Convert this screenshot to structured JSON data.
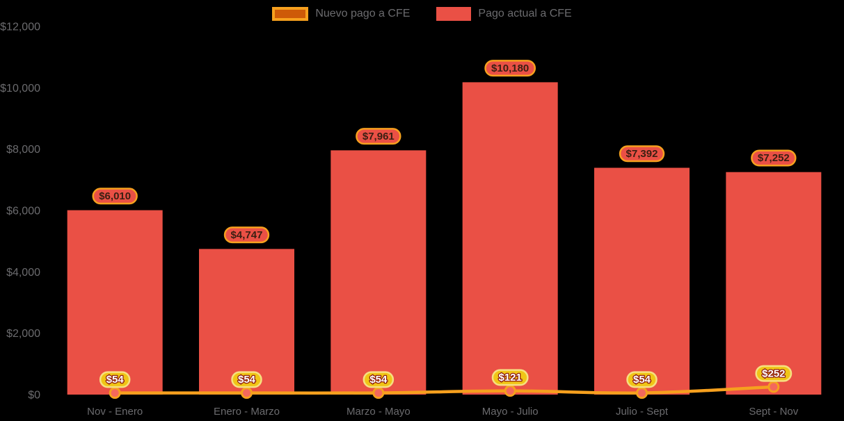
{
  "chart_data": {
    "type": "bar+line",
    "title": "",
    "background": "#000000",
    "axis_text_color": "#6b6b6e",
    "grid": false,
    "legend_position": "top",
    "categories": [
      "Nov - Enero",
      "Enero - Marzo",
      "Marzo - Mayo",
      "Mayo - Julio",
      "Julio - Sept",
      "Sept - Nov"
    ],
    "y_axis": {
      "min": 0,
      "max": 12000,
      "step": 2000,
      "tick_labels": [
        "$0",
        "$2,000",
        "$4,000",
        "$6,000",
        "$8,000",
        "$10,000",
        "$12,000"
      ]
    },
    "series": [
      {
        "name": "Nuevo pago a CFE",
        "type": "line",
        "values": [
          54,
          54,
          54,
          121,
          54,
          252
        ],
        "labels": [
          "$54",
          "$54",
          "$54",
          "$121",
          "$54",
          "$252"
        ],
        "color": "#f6a01e",
        "legend_fill": "#ce5a08",
        "point_fill": "#f4695c",
        "label_bg": "#f0c516",
        "label_border": "#f6df81",
        "label_text_color": "#ffffff",
        "label_text_stroke": "#8f1f0e"
      },
      {
        "name": "Pago actual a CFE",
        "type": "bar",
        "values": [
          6010,
          4747,
          7961,
          10180,
          7392,
          7252
        ],
        "labels": [
          "$6,010",
          "$4,747",
          "$7,961",
          "$10,180",
          "$7,392",
          "$7,252"
        ],
        "color": "#ea5045",
        "label_bg": "#ea5045",
        "label_border": "#f6a01e",
        "label_text_color": "#3a1f12"
      }
    ]
  }
}
